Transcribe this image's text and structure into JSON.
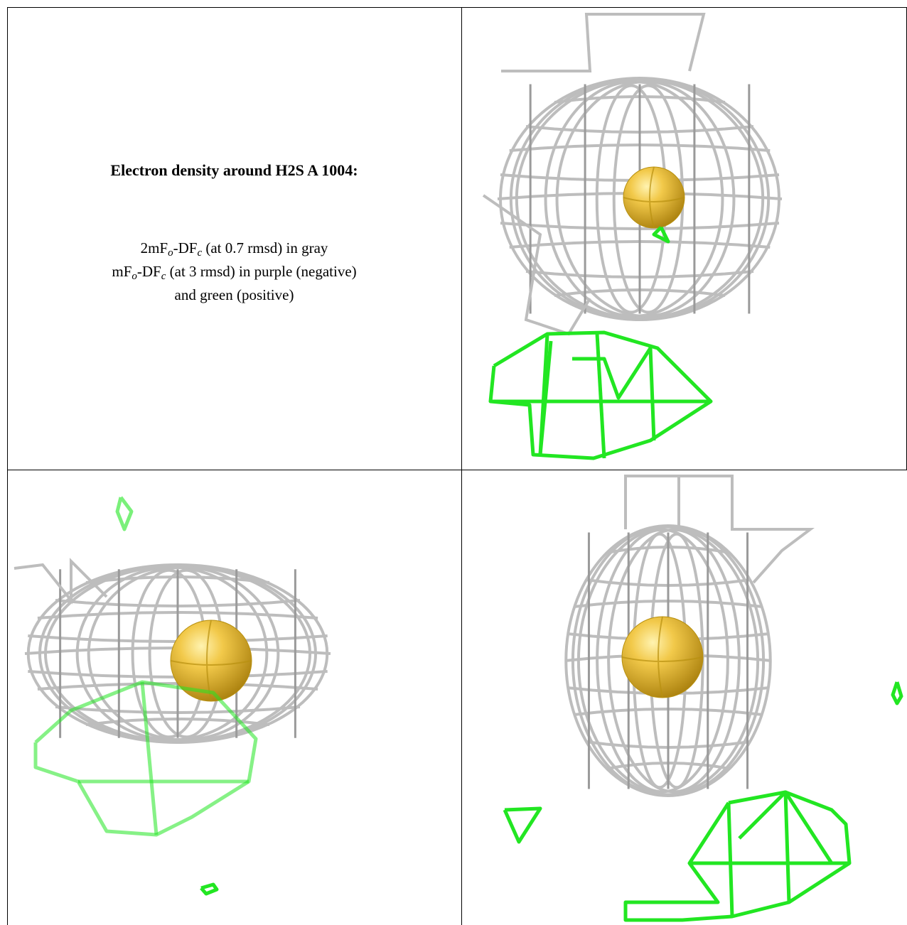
{
  "caption": {
    "title": "Electron density around H2S A 1004:",
    "lines": [
      {
        "parts": [
          "2mF",
          "o",
          "-DF",
          "c",
          " (at 0.7 rmsd) in gray"
        ]
      },
      {
        "parts": [
          "mF",
          "o",
          "-DF",
          "c",
          " (at 3 rmsd) in purple (negative)"
        ]
      },
      {
        "parts": [
          "and green (positive)"
        ]
      }
    ]
  }
}
